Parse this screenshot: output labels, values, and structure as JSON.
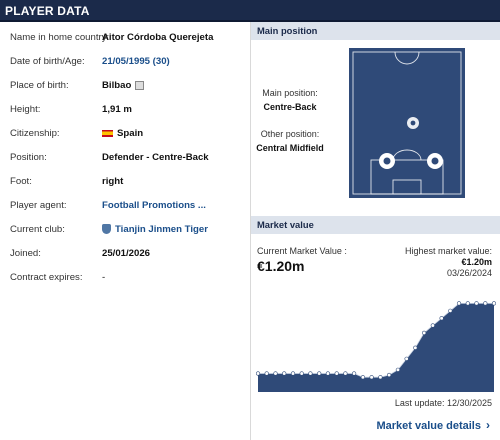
{
  "header": {
    "title": "PLAYER DATA"
  },
  "player": {
    "rows": [
      {
        "label": "Name in home country:",
        "value": "Aitor Córdoba Querejeta"
      },
      {
        "label": "Date of birth/Age:",
        "value": "21/05/1995 (30)"
      },
      {
        "label": "Place of birth:",
        "value": "Bilbao"
      },
      {
        "label": "Height:",
        "value": "1,91 m"
      },
      {
        "label": "Citizenship:",
        "value": "Spain"
      },
      {
        "label": "Position:",
        "value": "Defender - Centre-Back"
      },
      {
        "label": "Foot:",
        "value": "right"
      },
      {
        "label": "Player agent:",
        "value": "Football Promotions ..."
      },
      {
        "label": "Current club:",
        "value": "Tianjin Jinmen Tiger"
      },
      {
        "label": "Joined:",
        "value": "25/01/2026"
      },
      {
        "label": "Contract expires:",
        "value": "-"
      }
    ]
  },
  "main_position": {
    "title": "Main position",
    "main_label": "Main position:",
    "main_value": "Centre-Back",
    "other_label": "Other position:",
    "other_value": "Central Midfield"
  },
  "market_value": {
    "title": "Market value",
    "current_label": "Current Market Value :",
    "current_value": "€1.20m",
    "highest_label": "Highest market value:",
    "highest_value": "€1.20m",
    "highest_date": "03/26/2024",
    "last_update": "Last update: 12/30/2025",
    "details_link": "Market value details"
  },
  "colors": {
    "navy": "#1b2a4a",
    "pitch": "#2f4a78",
    "link": "#1a4e8a",
    "section_bg": "#dde3ec"
  },
  "chart_data": {
    "type": "area",
    "title": "",
    "xlabel": "",
    "ylabel": "",
    "x": [
      0,
      1,
      2,
      3,
      4,
      5,
      6,
      7,
      8,
      9,
      10,
      11,
      12,
      13,
      14,
      15,
      16,
      17,
      18,
      19,
      20,
      21,
      22,
      23,
      24,
      25,
      26,
      27
    ],
    "values": [
      0.25,
      0.25,
      0.25,
      0.25,
      0.25,
      0.25,
      0.25,
      0.25,
      0.25,
      0.25,
      0.25,
      0.25,
      0.2,
      0.2,
      0.2,
      0.23,
      0.3,
      0.45,
      0.6,
      0.8,
      0.9,
      1.0,
      1.1,
      1.2,
      1.2,
      1.2,
      1.2,
      1.2
    ],
    "ylim": [
      0,
      1.3
    ],
    "grid": false,
    "legend": "none"
  }
}
